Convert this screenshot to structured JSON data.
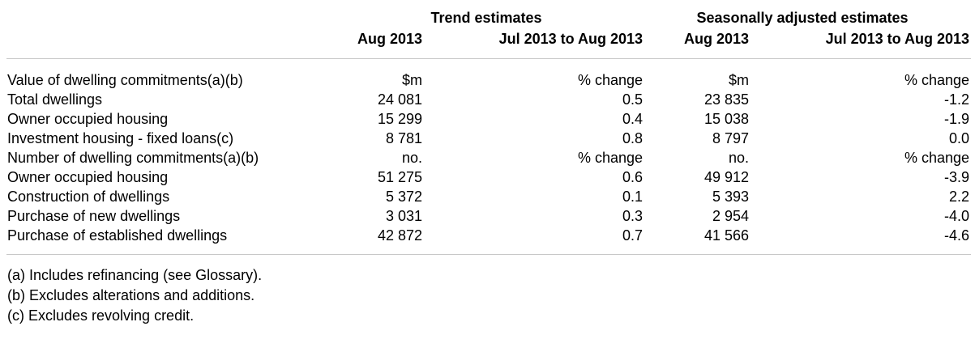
{
  "header": {
    "groups": [
      "Trend estimates",
      "Seasonally adjusted estimates"
    ],
    "columns": [
      "Aug 2013",
      "Jul 2013 to Aug 2013",
      "Aug 2013",
      "Jul 2013 to Aug 2013"
    ]
  },
  "rows": [
    {
      "label": "Value of dwelling commitments(a)(b)",
      "c1": "$m",
      "c2": "% change",
      "c3": "$m",
      "c4": "% change"
    },
    {
      "label": "Total dwellings",
      "c1": "24 081",
      "c2": "0.5",
      "c3": "23 835",
      "c4": "-1.2"
    },
    {
      "label": "Owner occupied housing",
      "c1": "15 299",
      "c2": "0.4",
      "c3": "15 038",
      "c4": "-1.9"
    },
    {
      "label": "Investment housing - fixed loans(c)",
      "c1": "8 781",
      "c2": "0.8",
      "c3": "8 797",
      "c4": "0.0"
    },
    {
      "label": "Number of dwelling commitments(a)(b)",
      "c1": "no.",
      "c2": "% change",
      "c3": "no.",
      "c4": "% change"
    },
    {
      "label": "Owner occupied housing",
      "c1": "51 275",
      "c2": "0.6",
      "c3": "49 912",
      "c4": "-3.9"
    },
    {
      "label": "Construction of dwellings",
      "c1": "5 372",
      "c2": "0.1",
      "c3": "5 393",
      "c4": "2.2"
    },
    {
      "label": "Purchase of new dwellings",
      "c1": "3 031",
      "c2": "0.3",
      "c3": "2 954",
      "c4": "-4.0"
    },
    {
      "label": "Purchase of established dwellings",
      "c1": "42 872",
      "c2": "0.7",
      "c3": "41 566",
      "c4": "-4.6"
    }
  ],
  "footnotes": [
    "(a) Includes refinancing (see Glossary).",
    "(b) Excludes alterations and additions.",
    "(c) Excludes revolving credit."
  ]
}
